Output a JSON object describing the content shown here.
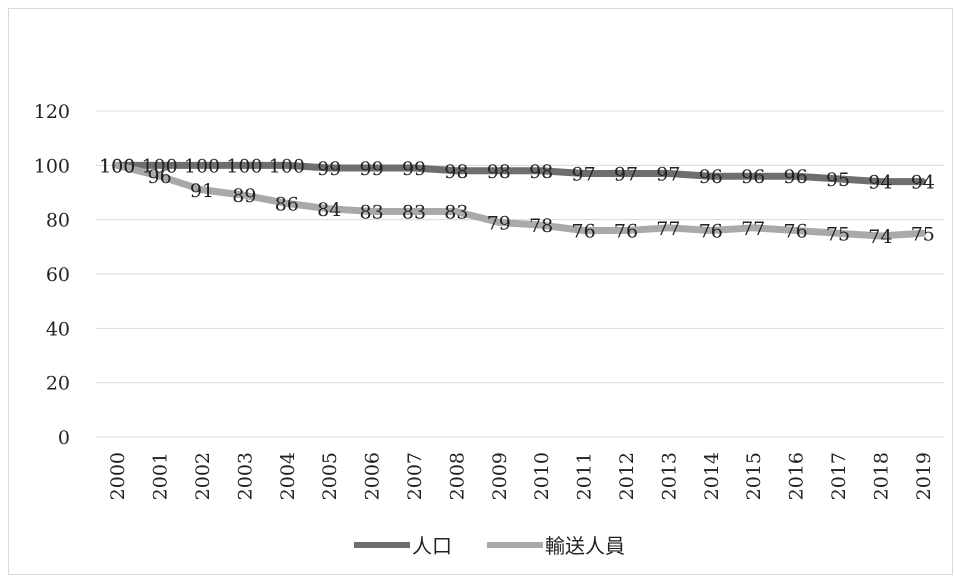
{
  "chart_data": {
    "type": "line",
    "title": "",
    "xlabel": "",
    "ylabel": "",
    "ylim": [
      0,
      120
    ],
    "yticks": [
      0,
      20,
      40,
      60,
      80,
      100,
      120
    ],
    "grid": true,
    "legend_position": "bottom",
    "categories": [
      "2000",
      "2001",
      "2002",
      "2003",
      "2004",
      "2005",
      "2006",
      "2007",
      "2008",
      "2009",
      "2010",
      "2011",
      "2012",
      "2013",
      "2014",
      "2015",
      "2016",
      "2017",
      "2018",
      "2019"
    ],
    "series": [
      {
        "name": "人口",
        "color": "#6e6e6e",
        "values": [
          100,
          100,
          100,
          100,
          100,
          99,
          99,
          99,
          98,
          98,
          98,
          97,
          97,
          97,
          96,
          96,
          96,
          95,
          94,
          94
        ]
      },
      {
        "name": "輸送人員",
        "color": "#a9a9a9",
        "values": [
          100,
          96,
          91,
          89,
          86,
          84,
          83,
          83,
          83,
          79,
          78,
          76,
          76,
          77,
          76,
          77,
          76,
          75,
          74,
          75
        ]
      }
    ]
  }
}
